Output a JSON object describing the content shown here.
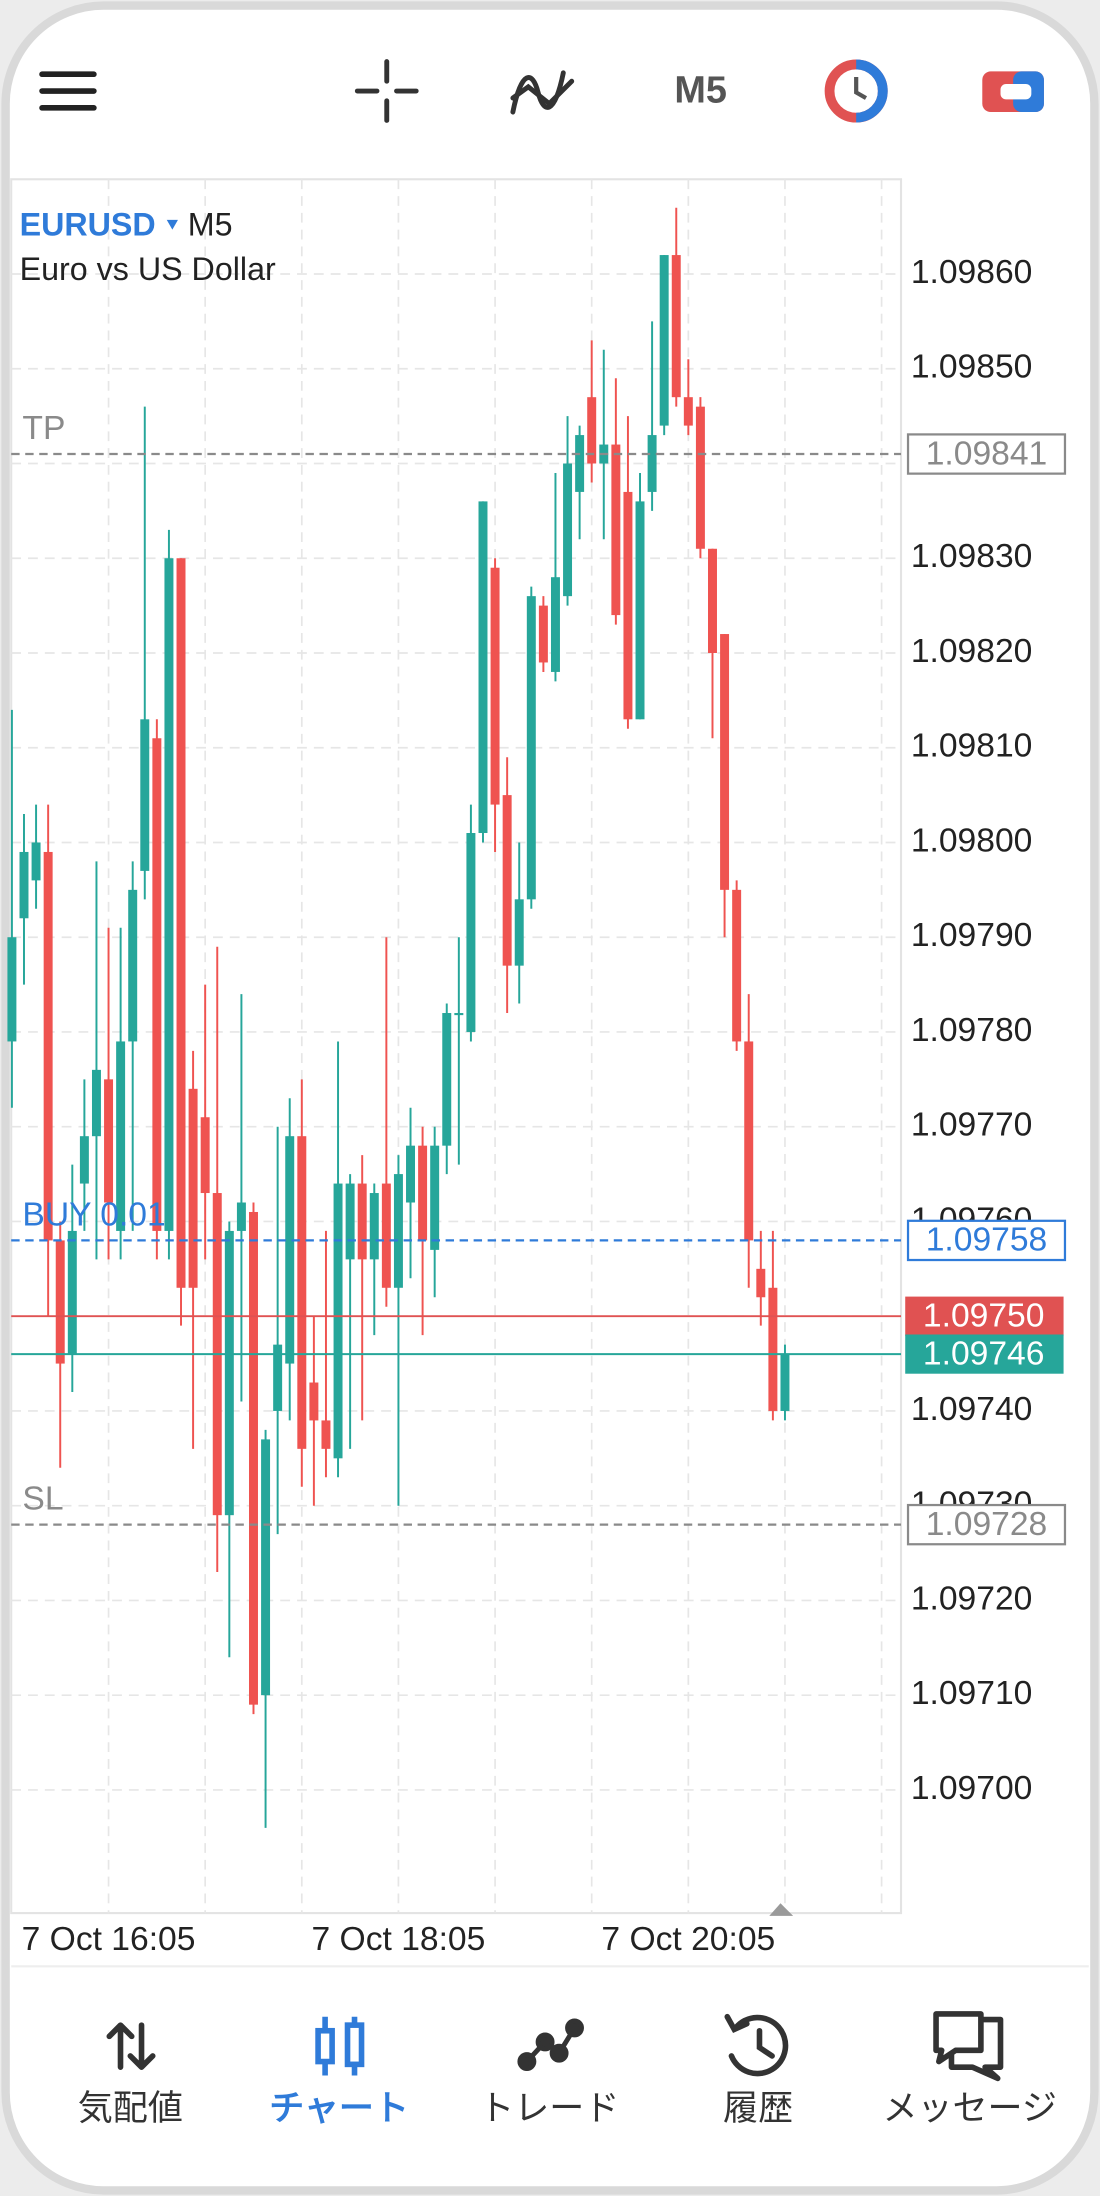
{
  "chart_data": {
    "type": "candlestick",
    "symbol": "EURUSD",
    "timeframe": "M5",
    "description": "Euro vs US Dollar",
    "categories": [
      null,
      null,
      null,
      null,
      null,
      null,
      null,
      null,
      "7 Oct 16:05",
      null,
      null,
      null,
      null,
      null,
      null,
      null,
      null,
      null,
      null,
      null,
      null,
      null,
      null,
      null,
      null,
      null,
      null,
      null,
      null,
      null,
      null,
      null,
      "7 Oct 18:05",
      null,
      null,
      null,
      null,
      null,
      null,
      null,
      null,
      null,
      null,
      null,
      null,
      null,
      null,
      null,
      null,
      null,
      null,
      null,
      null,
      null,
      null,
      null,
      "7 Oct 20:05",
      null,
      null,
      null,
      null,
      null,
      null,
      null,
      null
    ],
    "open": [
      1.09779,
      1.09792,
      1.09796,
      1.09799,
      1.09758,
      1.09746,
      1.09764,
      1.09769,
      1.09775,
      1.09759,
      1.09779,
      1.09797,
      1.09811,
      1.09759,
      1.0983,
      1.09774,
      1.09771,
      1.09763,
      1.09729,
      1.09759,
      1.09761,
      1.0971,
      1.0974,
      1.09745,
      1.09769,
      1.09743,
      1.09739,
      1.09735,
      1.09756,
      1.09764,
      1.09756,
      1.09764,
      1.09753,
      1.09762,
      1.09768,
      1.09757,
      1.09768,
      1.09782,
      1.0978,
      1.09801,
      1.09829,
      1.09805,
      1.09787,
      1.09794,
      1.09825,
      1.09818,
      1.09826,
      1.09837,
      1.09847,
      1.0984,
      1.09842,
      1.09837,
      1.09813,
      1.09837,
      1.09844,
      1.09862,
      1.09847,
      1.09846,
      1.09831,
      1.09822,
      1.09795,
      1.09779,
      1.09755,
      1.09753,
      1.0974
    ],
    "high": [
      1.09814,
      1.09803,
      1.09804,
      1.09804,
      1.0976,
      1.09766,
      1.09775,
      1.09798,
      1.09791,
      1.09791,
      1.09798,
      1.09846,
      1.09813,
      1.09833,
      1.0983,
      1.09778,
      1.09785,
      1.09789,
      1.0976,
      1.09784,
      1.09762,
      1.09738,
      1.0977,
      1.09773,
      1.09775,
      1.0975,
      1.09759,
      1.09779,
      1.09765,
      1.09767,
      1.09764,
      1.0979,
      1.09767,
      1.09772,
      1.0977,
      1.0977,
      1.09783,
      1.0979,
      1.09804,
      1.09836,
      1.0983,
      1.09809,
      1.098,
      1.09827,
      1.09826,
      1.09839,
      1.09845,
      1.09844,
      1.09853,
      1.09852,
      1.09849,
      1.09845,
      1.09839,
      1.09855,
      1.09862,
      1.09867,
      1.09851,
      1.09847,
      1.09831,
      1.09822,
      1.09796,
      1.09784,
      1.09759,
      1.09759,
      1.09747
    ],
    "low": [
      1.09772,
      1.09785,
      1.09793,
      1.0975,
      1.09734,
      1.09742,
      1.09759,
      1.09756,
      1.09756,
      1.09756,
      1.09759,
      1.09794,
      1.09756,
      1.09756,
      1.09749,
      1.09736,
      1.09756,
      1.09723,
      1.09714,
      1.09741,
      1.09708,
      1.09696,
      1.09727,
      1.09739,
      1.09732,
      1.0973,
      1.09733,
      1.09733,
      1.09736,
      1.09739,
      1.09748,
      1.09751,
      1.0973,
      1.09754,
      1.09748,
      1.09752,
      1.09765,
      1.09766,
      1.09779,
      1.098,
      1.09799,
      1.09782,
      1.09783,
      1.09793,
      1.09818,
      1.09817,
      1.09825,
      1.09832,
      1.09838,
      1.09832,
      1.09823,
      1.09812,
      1.09813,
      1.09835,
      1.09843,
      1.09846,
      1.09843,
      1.0983,
      1.09811,
      1.0979,
      1.09778,
      1.09753,
      1.09749,
      1.09739,
      1.09739
    ],
    "close": [
      1.0979,
      1.09799,
      1.098,
      1.09758,
      1.09745,
      1.09759,
      1.09769,
      1.09776,
      1.09762,
      1.09779,
      1.09795,
      1.09813,
      1.09759,
      1.0983,
      1.09753,
      1.09753,
      1.09763,
      1.09729,
      1.09759,
      1.09762,
      1.09709,
      1.09737,
      1.09747,
      1.09769,
      1.09736,
      1.09739,
      1.09736,
      1.09764,
      1.09764,
      1.09756,
      1.09763,
      1.09753,
      1.09765,
      1.09768,
      1.09758,
      1.09768,
      1.09782,
      1.09782,
      1.09801,
      1.09836,
      1.09804,
      1.09787,
      1.09794,
      1.09826,
      1.09819,
      1.09828,
      1.0984,
      1.09843,
      1.0984,
      1.09842,
      1.09824,
      1.09813,
      1.09836,
      1.09843,
      1.09862,
      1.09847,
      1.09844,
      1.09831,
      1.0982,
      1.09795,
      1.09779,
      1.09758,
      1.09752,
      1.0974,
      1.09746
    ],
    "up_color": "#26a69a",
    "down_color": "#ef5350",
    "ylim": [
      1.09687,
      1.0987
    ],
    "yticks": [
      {
        "value": 1.097,
        "label": "1.09700"
      },
      {
        "value": 1.0971,
        "label": "1.09710"
      },
      {
        "value": 1.0972,
        "label": "1.09720"
      },
      {
        "value": 1.0973,
        "label": "1.09730"
      },
      {
        "value": 1.0974,
        "label": "1.09740"
      },
      {
        "value": 1.0975,
        "label": "1.09750"
      },
      {
        "value": 1.0976,
        "label": "1.09760"
      },
      {
        "value": 1.0977,
        "label": "1.09770"
      },
      {
        "value": 1.0978,
        "label": "1.09780"
      },
      {
        "value": 1.0979,
        "label": "1.09790"
      },
      {
        "value": 1.098,
        "label": "1.09800"
      },
      {
        "value": 1.0981,
        "label": "1.09810"
      },
      {
        "value": 1.0982,
        "label": "1.09820"
      },
      {
        "value": 1.0983,
        "label": "1.09830"
      },
      {
        "value": 1.0984,
        "label": "1.09840"
      },
      {
        "value": 1.0985,
        "label": "1.09850"
      },
      {
        "value": 1.0986,
        "label": "1.09860"
      }
    ],
    "grid": true,
    "price_lines": [
      {
        "label": "TP",
        "value": 1.09841,
        "color": "#8a8a8a"
      },
      {
        "label": "BUY 0.01",
        "value": 1.09758,
        "color": "#2f7bd9"
      },
      {
        "label": "SL",
        "value": 1.09728,
        "color": "#8a8a8a"
      }
    ],
    "ask": {
      "value": 1.0975,
      "value_label": "1.09750",
      "color": "#e05252"
    },
    "bid": {
      "value": 1.09746,
      "color": "#26a69a"
    }
  },
  "nav": {
    "items": [
      "気配値",
      "チャート",
      "トレード",
      "履歴",
      "メッセージ"
    ],
    "active": 1,
    "active_color": "#2f7bd9"
  }
}
